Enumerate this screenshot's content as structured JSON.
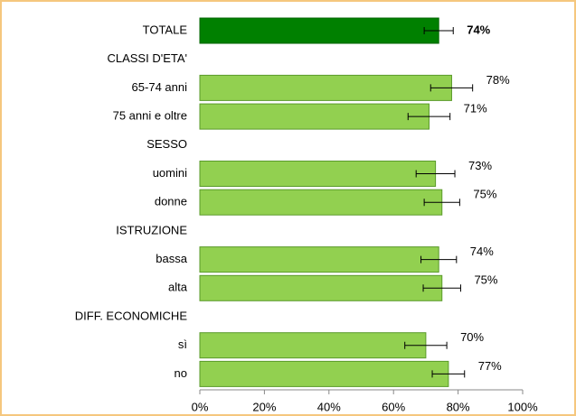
{
  "chart_data": {
    "type": "hbar",
    "categories": [
      "TOTALE",
      "CLASSI D'ETA'",
      "65-74 anni",
      "75 anni e oltre",
      "SESSO",
      "uomini",
      "donne",
      "ISTRUZIONE",
      "bassa",
      "alta",
      "DIFF. ECONOMICHE",
      "sì",
      "no"
    ],
    "values": [
      74,
      null,
      78,
      71,
      null,
      73,
      75,
      null,
      74,
      75,
      null,
      70,
      77
    ],
    "value_labels": [
      "74%",
      null,
      "78%",
      "71%",
      null,
      "73%",
      "75%",
      null,
      "74%",
      "75%",
      null,
      "70%",
      "77%"
    ],
    "errors": [
      4.5,
      null,
      6.5,
      6.5,
      null,
      6,
      5.5,
      null,
      5.5,
      5.8,
      null,
      6.5,
      5
    ],
    "colors": [
      "#008000",
      null,
      "#92d050",
      "#92d050",
      null,
      "#92d050",
      "#92d050",
      null,
      "#92d050",
      "#92d050",
      null,
      "#92d050",
      "#92d050"
    ],
    "xlim": [
      0,
      100
    ],
    "xticks": [
      {
        "value": 0,
        "label": "0%"
      },
      {
        "value": 20,
        "label": "20%"
      },
      {
        "value": 40,
        "label": "40%"
      },
      {
        "value": 60,
        "label": "60%"
      },
      {
        "value": 80,
        "label": "80%"
      },
      {
        "value": 100,
        "label": "100%"
      }
    ]
  }
}
